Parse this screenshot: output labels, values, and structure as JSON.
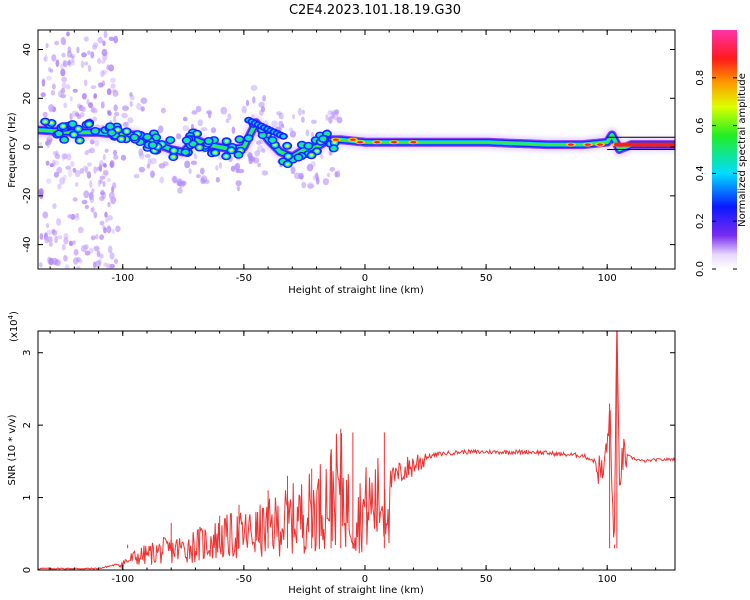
{
  "title": "C2E4.2023.101.18.19.G30",
  "chart_data": [
    {
      "type": "heatmap",
      "xlabel": "Height of straight line (km)",
      "ylabel": "Frequency (Hz)",
      "xlim": [
        -135,
        128
      ],
      "ylim": [
        -50,
        48
      ],
      "xticks": [
        -100,
        -50,
        0,
        50,
        100
      ],
      "yticks": [
        -40,
        -20,
        0,
        20,
        40
      ],
      "colorbar": {
        "label": "Normalized spectral amplitude",
        "range": [
          0,
          1
        ],
        "ticks": [
          0.0,
          0.2,
          0.4,
          0.6,
          0.8
        ],
        "colormap": "rainbow (white, violet, blue, cyan, green, yellow, orange, red, magenta)"
      },
      "ridge": {
        "description": "Dominant frequency ridge vs. height",
        "x": [
          -135,
          -120,
          -110,
          -100,
          -95,
          -90,
          -85,
          -80,
          -75,
          -70,
          -65,
          -60,
          -55,
          -50,
          -45,
          -40,
          -35,
          -30,
          -25,
          -20,
          -15,
          -10,
          0,
          25,
          50,
          75,
          90,
          100,
          102,
          105,
          110,
          128
        ],
        "y": [
          7,
          6,
          6,
          5,
          5,
          3,
          1,
          -1,
          -2,
          3,
          1,
          0,
          -1,
          0,
          10,
          3,
          -2,
          -4,
          -1,
          0,
          3,
          3,
          2,
          2,
          2,
          1,
          1,
          2,
          5,
          -1,
          1,
          1
        ]
      }
    },
    {
      "type": "line",
      "xlabel": "Height of straight line (km)",
      "ylabel": "SNR (10 * v/v)",
      "y_multiplier": "(x10",
      "y_multiplier_exp": "4",
      "y_multiplier_close": ")",
      "xlim": [
        -135,
        128
      ],
      "ylim": [
        0,
        3.3
      ],
      "xticks": [
        -100,
        -50,
        0,
        50,
        100
      ],
      "yticks": [
        0,
        1,
        2,
        3
      ],
      "color": "#ee3333",
      "envelope": {
        "description": "Approximate SNR trend (x10^4) vs. height; trace is very noisy between -100 and 10 km",
        "x": [
          -135,
          -110,
          -102,
          -95,
          -85,
          -75,
          -65,
          -55,
          -45,
          -35,
          -25,
          -20,
          -15,
          -12,
          -10,
          -7,
          -5,
          0,
          5,
          10,
          15,
          20,
          25,
          30,
          40,
          50,
          60,
          70,
          80,
          90,
          95,
          98,
          100,
          101,
          102,
          103,
          104,
          105,
          107,
          110,
          115,
          120,
          128
        ],
        "y": [
          0.02,
          0.02,
          0.08,
          0.2,
          0.3,
          0.35,
          0.45,
          0.55,
          0.6,
          0.75,
          0.9,
          1.0,
          1.2,
          1.3,
          1.35,
          1.0,
          0.8,
          1.0,
          1.1,
          1.2,
          1.35,
          1.45,
          1.55,
          1.6,
          1.63,
          1.63,
          1.63,
          1.63,
          1.6,
          1.58,
          1.5,
          1.3,
          1.7,
          2.3,
          1.0,
          0.5,
          3.3,
          1.3,
          1.6,
          1.55,
          1.5,
          1.52,
          1.53
        ]
      },
      "peaks": {
        "description": "Notable spikes (x10^4)",
        "x": [
          -98,
          -80,
          -60,
          -52,
          -40,
          -32,
          -22,
          -14,
          -10,
          -5,
          8,
          101,
          103,
          104
        ],
        "y": [
          0.35,
          0.65,
          0.75,
          0.9,
          1.1,
          1.3,
          1.4,
          1.65,
          1.95,
          1.9,
          1.9,
          2.3,
          0.35,
          3.3
        ]
      }
    }
  ]
}
